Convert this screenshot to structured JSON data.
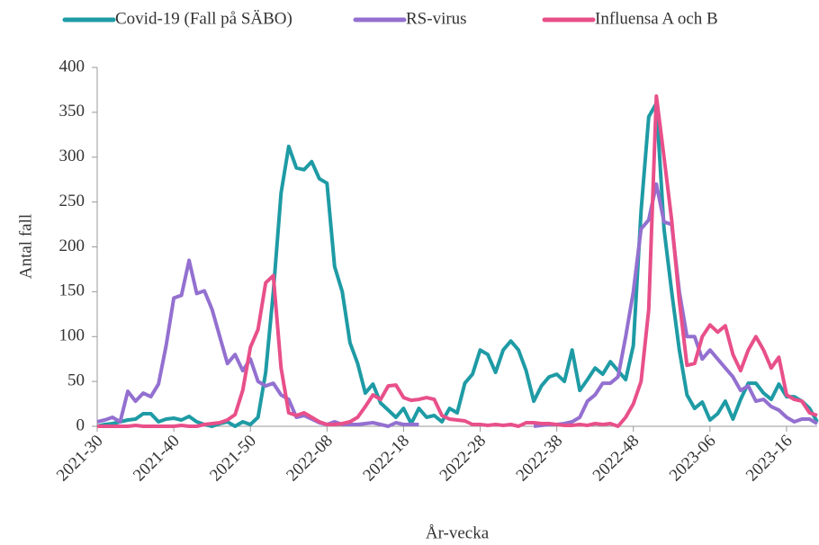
{
  "chart_data": {
    "type": "line",
    "ylabel": "Antal fall",
    "xlabel": "År-vecka",
    "categories": [
      "2021-30",
      null,
      null,
      null,
      null,
      null,
      null,
      null,
      null,
      null,
      "2021-40",
      null,
      null,
      null,
      null,
      null,
      null,
      null,
      null,
      null,
      "2021-50",
      null,
      null,
      null,
      null,
      null,
      null,
      null,
      null,
      null,
      "2022-08",
      null,
      null,
      null,
      null,
      null,
      null,
      null,
      null,
      null,
      "2022-18",
      null,
      null,
      null,
      null,
      null,
      null,
      null,
      null,
      null,
      "2022-28",
      null,
      null,
      null,
      null,
      null,
      null,
      null,
      null,
      null,
      "2022-38",
      null,
      null,
      null,
      null,
      null,
      null,
      null,
      null,
      null,
      "2022-48",
      null,
      null,
      null,
      null,
      null,
      null,
      null,
      null,
      null,
      "2023-06",
      null,
      null,
      null,
      null,
      null,
      null,
      null,
      null,
      null,
      "2023-16",
      null,
      null,
      null,
      null
    ],
    "series": [
      {
        "name": "Covid-19 (Fall på SÄBO)",
        "color": "#1e9ba5",
        "values": [
          0,
          2,
          3,
          5,
          7,
          8,
          14,
          14,
          5,
          8,
          9,
          7,
          11,
          5,
          2,
          0,
          3,
          5,
          0,
          5,
          2,
          10,
          60,
          150,
          260,
          312,
          288,
          286,
          295,
          276,
          271,
          178,
          150,
          93,
          70,
          37,
          47,
          26,
          18,
          10,
          20,
          3,
          20,
          10,
          12,
          5,
          20,
          15,
          48,
          58,
          85,
          80,
          60,
          85,
          95,
          85,
          62,
          28,
          45,
          55,
          58,
          50,
          85,
          40,
          52,
          65,
          58,
          72,
          62,
          52,
          90,
          240,
          345,
          360,
          220,
          150,
          85,
          35,
          20,
          27,
          7,
          14,
          28,
          8,
          30,
          48,
          48,
          37,
          30,
          47,
          33,
          33,
          28,
          20,
          5
        ]
      },
      {
        "name": "RS-virus",
        "color": "#9370d0",
        "values": [
          5,
          7,
          10,
          5,
          39,
          28,
          37,
          33,
          47,
          90,
          143,
          146,
          185,
          148,
          151,
          130,
          100,
          70,
          80,
          62,
          75,
          50,
          45,
          48,
          35,
          30,
          10,
          12,
          8,
          4,
          2,
          5,
          2,
          2,
          2,
          3,
          4,
          2,
          0,
          4,
          2,
          2,
          2,
          null,
          null,
          null,
          null,
          null,
          null,
          null,
          null,
          null,
          null,
          null,
          null,
          null,
          null,
          0,
          1,
          2,
          2,
          3,
          5,
          10,
          28,
          35,
          48,
          48,
          55,
          100,
          150,
          220,
          230,
          270,
          228,
          225,
          150,
          100,
          100,
          75,
          85,
          75,
          65,
          55,
          40,
          45,
          28,
          30,
          22,
          18,
          10,
          5,
          8,
          8,
          3
        ]
      },
      {
        "name": "Influensa A och B",
        "color": "#e8508a",
        "values": [
          0,
          0,
          0,
          0,
          0,
          1,
          0,
          0,
          0,
          0,
          0,
          1,
          0,
          0,
          2,
          3,
          4,
          7,
          13,
          40,
          88,
          108,
          160,
          168,
          65,
          15,
          12,
          15,
          10,
          5,
          2,
          2,
          3,
          5,
          10,
          22,
          35,
          30,
          45,
          46,
          32,
          29,
          30,
          32,
          30,
          12,
          8,
          7,
          6,
          2,
          2,
          1,
          2,
          1,
          2,
          0,
          4,
          4,
          3,
          3,
          2,
          1,
          1,
          2,
          1,
          3,
          2,
          3,
          0,
          10,
          25,
          50,
          130,
          368,
          300,
          230,
          140,
          68,
          70,
          100,
          113,
          105,
          112,
          80,
          62,
          85,
          100,
          85,
          65,
          77,
          35,
          30,
          28,
          15,
          12
        ]
      }
    ],
    "ylim": [
      0,
      400
    ],
    "yticks": [
      0,
      50,
      100,
      150,
      200,
      250,
      300,
      350,
      400
    ]
  }
}
